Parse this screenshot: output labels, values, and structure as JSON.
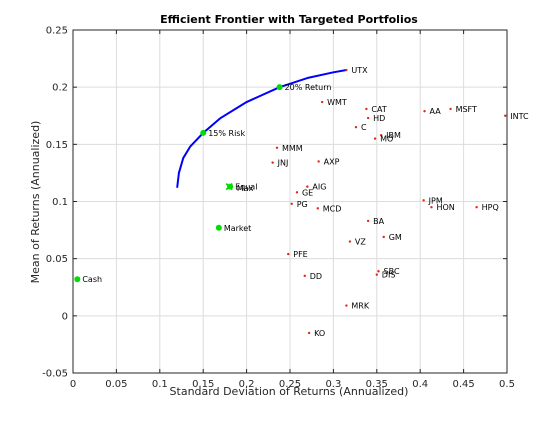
{
  "chart_data": {
    "type": "scatter",
    "title": "Efficient Frontier with Targeted Portfolios",
    "xlabel": "Standard Deviation of Returns (Annualized)",
    "ylabel": "Mean of Returns (Annualized)",
    "xlim": [
      0,
      0.5
    ],
    "ylim": [
      -0.05,
      0.25
    ],
    "x_ticks": [
      "0",
      "0.05",
      "0.1",
      "0.15",
      "0.2",
      "0.25",
      "0.3",
      "0.35",
      "0.4",
      "0.45",
      "0.5"
    ],
    "y_ticks": [
      "-0.05",
      "0",
      "0.05",
      "0.1",
      "0.15",
      "0.2",
      "0.25"
    ],
    "grid": true,
    "colors": {
      "frontier": "#0000ff",
      "asset_marker": "#e2261a",
      "portfolio_marker": "#00dd00",
      "axes": "#262626",
      "grid": "#dcdcdc"
    },
    "frontier": {
      "x": [
        0.12,
        0.122,
        0.127,
        0.135,
        0.15,
        0.17,
        0.2,
        0.238,
        0.27,
        0.3,
        0.315
      ],
      "y": [
        0.112,
        0.125,
        0.138,
        0.148,
        0.16,
        0.173,
        0.187,
        0.2,
        0.208,
        0.213,
        0.215
      ]
    },
    "assets": [
      {
        "name": "UTX",
        "x": 0.315,
        "y": 0.215
      },
      {
        "name": "WMT",
        "x": 0.287,
        "y": 0.187
      },
      {
        "name": "CAT",
        "x": 0.338,
        "y": 0.181
      },
      {
        "name": "AA",
        "x": 0.405,
        "y": 0.179
      },
      {
        "name": "MSFT",
        "x": 0.435,
        "y": 0.181
      },
      {
        "name": "INTC",
        "x": 0.498,
        "y": 0.175
      },
      {
        "name": "HD",
        "x": 0.34,
        "y": 0.173
      },
      {
        "name": "C",
        "x": 0.326,
        "y": 0.165
      },
      {
        "name": "IBM",
        "x": 0.355,
        "y": 0.158
      },
      {
        "name": "MO",
        "x": 0.348,
        "y": 0.155
      },
      {
        "name": "MMM",
        "x": 0.235,
        "y": 0.147
      },
      {
        "name": "JNJ",
        "x": 0.23,
        "y": 0.134
      },
      {
        "name": "AXP",
        "x": 0.283,
        "y": 0.135
      },
      {
        "name": "AIG",
        "x": 0.27,
        "y": 0.113
      },
      {
        "name": "GE",
        "x": 0.258,
        "y": 0.108
      },
      {
        "name": "PG",
        "x": 0.252,
        "y": 0.098
      },
      {
        "name": "MCD",
        "x": 0.282,
        "y": 0.094
      },
      {
        "name": "JPM",
        "x": 0.404,
        "y": 0.101
      },
      {
        "name": "HON",
        "x": 0.413,
        "y": 0.095
      },
      {
        "name": "HPQ",
        "x": 0.465,
        "y": 0.095
      },
      {
        "name": "BA",
        "x": 0.34,
        "y": 0.083
      },
      {
        "name": "GM",
        "x": 0.358,
        "y": 0.069
      },
      {
        "name": "VZ",
        "x": 0.319,
        "y": 0.065
      },
      {
        "name": "PFE",
        "x": 0.248,
        "y": 0.054
      },
      {
        "name": "SBC",
        "x": 0.352,
        "y": 0.039
      },
      {
        "name": "DIS",
        "x": 0.35,
        "y": 0.036
      },
      {
        "name": "DD",
        "x": 0.267,
        "y": 0.035
      },
      {
        "name": "MRK",
        "x": 0.315,
        "y": 0.009
      },
      {
        "name": "KO",
        "x": 0.272,
        "y": -0.015
      }
    ],
    "portfolios": [
      {
        "name": "20% Return",
        "x": 0.238,
        "y": 0.2
      },
      {
        "name": "15% Risk",
        "x": 0.15,
        "y": 0.16
      },
      {
        "name": "Equal",
        "x": 0.181,
        "y": 0.113
      },
      {
        "name": "Max",
        "x": 0.183,
        "y": 0.112
      },
      {
        "name": "Market",
        "x": 0.168,
        "y": 0.077
      },
      {
        "name": "Cash",
        "x": 0.005,
        "y": 0.032
      }
    ],
    "max_marker_x": {
      "x": 0.18,
      "y": 0.113
    }
  }
}
